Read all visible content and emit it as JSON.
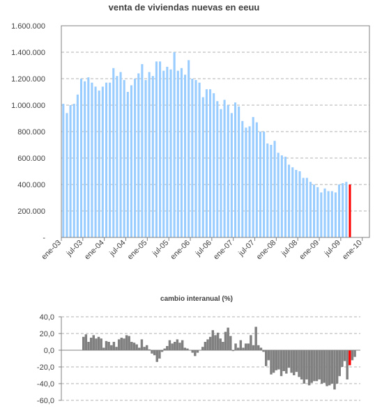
{
  "chart_data": [
    {
      "type": "bar",
      "title": "venta de viviendas nuevas en eeuu",
      "xlabel": "",
      "ylabel": "",
      "ylim": [
        0,
        1600000
      ],
      "ytick_labels": [
        "-",
        "200.000",
        "400.000",
        "600.000",
        "800.000",
        "1.000.000",
        "1.200.000",
        "1.400.000",
        "1.600.000"
      ],
      "x_tick_labels": [
        "ene-03",
        "jul-03",
        "ene-04",
        "jul-04",
        "ene-05",
        "jul-05",
        "ene-06",
        "jul-06",
        "ene-07",
        "jul-07",
        "ene-08",
        "jul-08",
        "ene-09",
        "jul-09",
        "ene-10"
      ],
      "x_start": "ene-03",
      "grid": true,
      "colors": {
        "bars": "#99ccff",
        "highlight": "#ff0000",
        "grid": "#b0b0b0",
        "axis": "#808080"
      },
      "highlight_last": true,
      "values": [
        1010000,
        940000,
        1000000,
        1010000,
        1080000,
        1200000,
        1180000,
        1210000,
        1170000,
        1140000,
        1110000,
        1140000,
        1170000,
        1170000,
        1280000,
        1220000,
        1250000,
        1190000,
        1100000,
        1150000,
        1200000,
        1240000,
        1310000,
        1190000,
        1250000,
        1220000,
        1330000,
        1330000,
        1260000,
        1290000,
        1270000,
        1400000,
        1260000,
        1280000,
        1230000,
        1340000,
        1200000,
        1190000,
        1170000,
        1060000,
        1120000,
        1120000,
        1090000,
        1030000,
        970000,
        1040000,
        1000000,
        940000,
        1020000,
        990000,
        880000,
        830000,
        840000,
        910000,
        870000,
        800000,
        800000,
        710000,
        700000,
        730000,
        640000,
        620000,
        610000,
        550000,
        530000,
        510000,
        500000,
        450000,
        450000,
        420000,
        400000,
        380000,
        340000,
        370000,
        350000,
        350000,
        340000,
        400000,
        410000,
        420000,
        400000
      ]
    },
    {
      "type": "bar",
      "title": "cambio interanual (%)",
      "xlabel": "",
      "ylabel": "",
      "ylim": [
        -60,
        40
      ],
      "ytick_labels": [
        "-60,0",
        "-40,0",
        "-20,0",
        "0,0",
        "20,0",
        "40,0"
      ],
      "grid": true,
      "colors": {
        "bars": "#808080",
        "highlight": "#ff0000",
        "grid": "#b0b0b0",
        "axis": "#808080"
      },
      "highlight_last": true,
      "values": [
        16,
        19,
        10,
        15,
        18,
        14,
        16,
        14,
        3,
        11,
        10,
        6,
        10,
        4,
        13,
        15,
        14,
        18,
        17,
        10,
        9,
        7,
        3,
        13,
        4,
        6,
        1,
        -4,
        -6,
        -14,
        -10,
        -2,
        2,
        5,
        12,
        8,
        10,
        13,
        9,
        12,
        3,
        2,
        0,
        -3,
        -7,
        -3,
        0,
        4,
        10,
        13,
        16,
        24,
        18,
        21,
        14,
        10,
        22,
        27,
        17,
        -1,
        8,
        3,
        12,
        3,
        8,
        8,
        18,
        6,
        28,
        6,
        3,
        -2,
        -19,
        -12,
        -29,
        -27,
        -24,
        -23,
        -31,
        -25,
        -28,
        -21,
        -27,
        -30,
        -26,
        -32,
        -35,
        -40,
        -35,
        -42,
        -39,
        -37,
        -37,
        -35,
        -40,
        -39,
        -43,
        -42,
        -40,
        -47,
        -40,
        -31,
        -20,
        -13,
        -35,
        -18,
        -12,
        -8
      ]
    }
  ]
}
